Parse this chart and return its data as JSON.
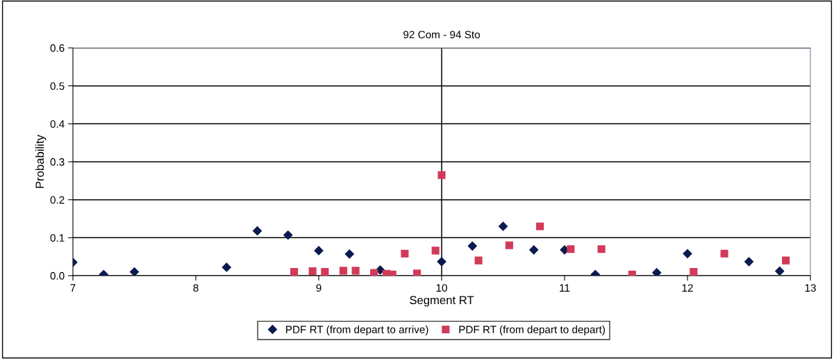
{
  "chart_data": {
    "type": "scatter",
    "title": "92 Com - 94 Sto",
    "xlabel": "Segment RT",
    "ylabel": "Probability",
    "xlim": [
      7,
      13
    ],
    "xticks": [
      7,
      8,
      9,
      10,
      11,
      12,
      13
    ],
    "ylim": [
      0,
      0.6
    ],
    "yticks": [
      {
        "value": 0,
        "label": "0.0"
      },
      0.1,
      0.2,
      0.3,
      0.4,
      0.5,
      0.6
    ],
    "grid": "y",
    "legend": "bottom",
    "ref_lines": [
      {
        "axis": "x",
        "value": 10,
        "color": "#000000"
      }
    ],
    "series": [
      {
        "name": "PDF RT (from depart to arrive)",
        "color": "#0b1a4f",
        "marker": "diamond",
        "x": [
          7,
          7.25,
          7.5,
          8.25,
          8.5,
          8.75,
          9,
          9.25,
          9.5,
          10,
          10.25,
          10.5,
          10.75,
          11,
          11.25,
          11.75,
          12,
          12.5,
          12.75
        ],
        "values": [
          0.035,
          0.003,
          0.01,
          0.022,
          0.118,
          0.107,
          0.066,
          0.057,
          0.015,
          0.037,
          0.078,
          0.13,
          0.068,
          0.068,
          0.003,
          0.008,
          0.058,
          0.037,
          0.012
        ]
      },
      {
        "name": "PDF RT (from depart to depart)",
        "color": "#d23a5a",
        "marker": "square",
        "x": [
          8.8,
          8.95,
          9.05,
          9.2,
          9.3,
          9.45,
          9.55,
          9.6,
          9.7,
          9.8,
          9.95,
          10,
          10.3,
          10.55,
          10.8,
          11.05,
          11.3,
          11.55,
          12.05,
          12.3,
          12.8
        ],
        "values": [
          0.01,
          0.012,
          0.01,
          0.013,
          0.013,
          0.007,
          0.005,
          0.003,
          0.058,
          0.006,
          0.066,
          0.265,
          0.04,
          0.08,
          0.13,
          0.07,
          0.07,
          0.003,
          0.01,
          0.058,
          0.04
        ]
      }
    ]
  }
}
